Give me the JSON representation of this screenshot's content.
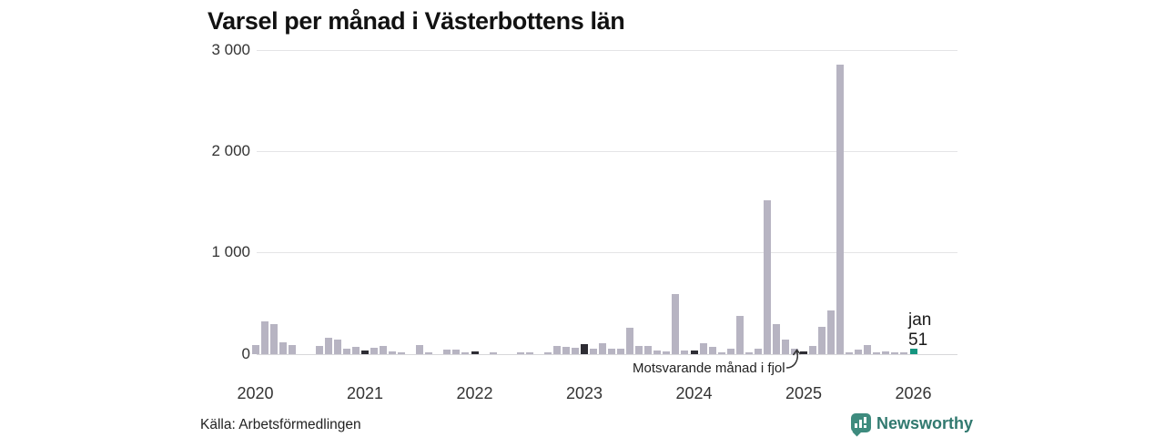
{
  "header": {
    "title": "Varsel per månad i Västerbottens län"
  },
  "footer": {
    "source": "Källa: Arbetsförmedlingen",
    "brand_name": "Newsworthy",
    "brand_icon": "newsworthy-speech-bubble-bar-chart-icon"
  },
  "colors": {
    "base_bar": "#b7b4c2",
    "fjol_bar": "#2e2d34",
    "current_bar": "#14957f",
    "grid": "#e4e4e6",
    "zero_line": "#d7d7da",
    "text": "#333333",
    "brand_teal": "#3e8b7e"
  },
  "chart_data": {
    "type": "bar",
    "title": "Varsel per månad i Västerbottens län",
    "xlabel": "",
    "ylabel": "",
    "ylim": [
      0,
      3000
    ],
    "grid": "horizontal",
    "legend_position": "none",
    "ytick_labels": [
      "3 000",
      "2 000",
      "1 000",
      "0"
    ],
    "ytick_values": [
      3000,
      2000,
      1000,
      0
    ],
    "xtick_labels": [
      "2020",
      "2021",
      "2022",
      "2023",
      "2024",
      "2025",
      "2026"
    ],
    "annotation": {
      "label": "Motsvarande månad i fjol",
      "points_to": "2025-01"
    },
    "current_month": {
      "month": "2026-01",
      "label_month": "jan",
      "label_value": "51",
      "value": 51
    },
    "months": [
      {
        "m": "2020-01",
        "v": 90,
        "c": "base"
      },
      {
        "m": "2020-02",
        "v": 320,
        "c": "base"
      },
      {
        "m": "2020-03",
        "v": 300,
        "c": "base"
      },
      {
        "m": "2020-04",
        "v": 115,
        "c": "base"
      },
      {
        "m": "2020-05",
        "v": 90,
        "c": "base"
      },
      {
        "m": "2020-06",
        "v": 0,
        "c": "base"
      },
      {
        "m": "2020-07",
        "v": 0,
        "c": "base"
      },
      {
        "m": "2020-08",
        "v": 80,
        "c": "base"
      },
      {
        "m": "2020-09",
        "v": 160,
        "c": "base"
      },
      {
        "m": "2020-10",
        "v": 145,
        "c": "base"
      },
      {
        "m": "2020-11",
        "v": 55,
        "c": "base"
      },
      {
        "m": "2020-12",
        "v": 70,
        "c": "base"
      },
      {
        "m": "2021-01",
        "v": 40,
        "c": "fjol"
      },
      {
        "m": "2021-02",
        "v": 65,
        "c": "base"
      },
      {
        "m": "2021-03",
        "v": 80,
        "c": "base"
      },
      {
        "m": "2021-04",
        "v": 30,
        "c": "base"
      },
      {
        "m": "2021-05",
        "v": 10,
        "c": "base"
      },
      {
        "m": "2021-06",
        "v": 0,
        "c": "base"
      },
      {
        "m": "2021-07",
        "v": 90,
        "c": "base"
      },
      {
        "m": "2021-08",
        "v": 15,
        "c": "base"
      },
      {
        "m": "2021-09",
        "v": 0,
        "c": "base"
      },
      {
        "m": "2021-10",
        "v": 45,
        "c": "base"
      },
      {
        "m": "2021-11",
        "v": 45,
        "c": "base"
      },
      {
        "m": "2021-12",
        "v": 20,
        "c": "base"
      },
      {
        "m": "2022-01",
        "v": 25,
        "c": "fjol"
      },
      {
        "m": "2022-02",
        "v": 0,
        "c": "base"
      },
      {
        "m": "2022-03",
        "v": 15,
        "c": "base"
      },
      {
        "m": "2022-04",
        "v": 0,
        "c": "base"
      },
      {
        "m": "2022-05",
        "v": 0,
        "c": "base"
      },
      {
        "m": "2022-06",
        "v": 15,
        "c": "base"
      },
      {
        "m": "2022-07",
        "v": 10,
        "c": "base"
      },
      {
        "m": "2022-08",
        "v": 0,
        "c": "base"
      },
      {
        "m": "2022-09",
        "v": 15,
        "c": "base"
      },
      {
        "m": "2022-10",
        "v": 80,
        "c": "base"
      },
      {
        "m": "2022-11",
        "v": 70,
        "c": "base"
      },
      {
        "m": "2022-12",
        "v": 60,
        "c": "base"
      },
      {
        "m": "2023-01",
        "v": 100,
        "c": "fjol"
      },
      {
        "m": "2023-02",
        "v": 50,
        "c": "base"
      },
      {
        "m": "2023-03",
        "v": 110,
        "c": "base"
      },
      {
        "m": "2023-04",
        "v": 55,
        "c": "base"
      },
      {
        "m": "2023-05",
        "v": 50,
        "c": "base"
      },
      {
        "m": "2023-06",
        "v": 260,
        "c": "base"
      },
      {
        "m": "2023-07",
        "v": 80,
        "c": "base"
      },
      {
        "m": "2023-08",
        "v": 80,
        "c": "base"
      },
      {
        "m": "2023-09",
        "v": 35,
        "c": "base"
      },
      {
        "m": "2023-10",
        "v": 25,
        "c": "base"
      },
      {
        "m": "2023-11",
        "v": 590,
        "c": "base"
      },
      {
        "m": "2023-12",
        "v": 35,
        "c": "base"
      },
      {
        "m": "2024-01",
        "v": 40,
        "c": "fjol"
      },
      {
        "m": "2024-02",
        "v": 110,
        "c": "base"
      },
      {
        "m": "2024-03",
        "v": 70,
        "c": "base"
      },
      {
        "m": "2024-04",
        "v": 10,
        "c": "base"
      },
      {
        "m": "2024-05",
        "v": 55,
        "c": "base"
      },
      {
        "m": "2024-06",
        "v": 380,
        "c": "base"
      },
      {
        "m": "2024-07",
        "v": 15,
        "c": "base"
      },
      {
        "m": "2024-08",
        "v": 55,
        "c": "base"
      },
      {
        "m": "2024-09",
        "v": 1520,
        "c": "base"
      },
      {
        "m": "2024-10",
        "v": 300,
        "c": "base"
      },
      {
        "m": "2024-11",
        "v": 145,
        "c": "base"
      },
      {
        "m": "2024-12",
        "v": 50,
        "c": "base"
      },
      {
        "m": "2025-01",
        "v": 25,
        "c": "fjol"
      },
      {
        "m": "2025-02",
        "v": 80,
        "c": "base"
      },
      {
        "m": "2025-03",
        "v": 270,
        "c": "base"
      },
      {
        "m": "2025-04",
        "v": 430,
        "c": "base"
      },
      {
        "m": "2025-05",
        "v": 2860,
        "c": "base"
      },
      {
        "m": "2025-06",
        "v": 15,
        "c": "base"
      },
      {
        "m": "2025-07",
        "v": 45,
        "c": "base"
      },
      {
        "m": "2025-08",
        "v": 90,
        "c": "base"
      },
      {
        "m": "2025-09",
        "v": 20,
        "c": "base"
      },
      {
        "m": "2025-10",
        "v": 25,
        "c": "base"
      },
      {
        "m": "2025-11",
        "v": 20,
        "c": "base"
      },
      {
        "m": "2025-12",
        "v": 15,
        "c": "base"
      },
      {
        "m": "2026-01",
        "v": 51,
        "c": "current"
      }
    ]
  }
}
